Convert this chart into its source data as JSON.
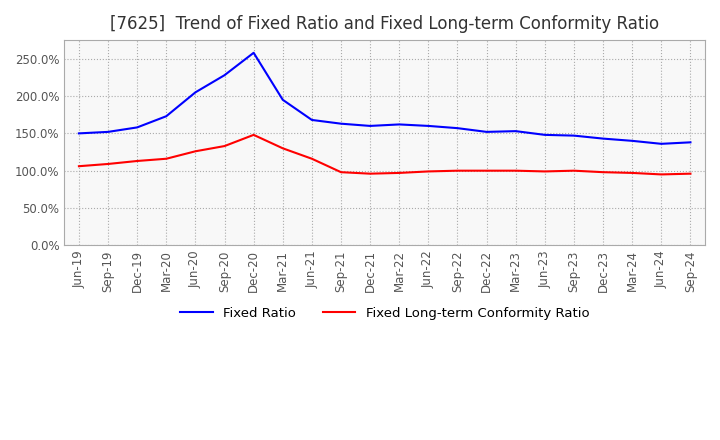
{
  "title": "[7625]  Trend of Fixed Ratio and Fixed Long-term Conformity Ratio",
  "x_labels": [
    "Jun-19",
    "Sep-19",
    "Dec-19",
    "Mar-20",
    "Jun-20",
    "Sep-20",
    "Dec-20",
    "Mar-21",
    "Jun-21",
    "Sep-21",
    "Dec-21",
    "Mar-22",
    "Jun-22",
    "Sep-22",
    "Dec-22",
    "Mar-23",
    "Jun-23",
    "Sep-23",
    "Dec-23",
    "Mar-24",
    "Jun-24",
    "Sep-24"
  ],
  "fixed_ratio": [
    150.0,
    152.0,
    158.0,
    173.0,
    205.0,
    228.0,
    258.0,
    195.0,
    168.0,
    163.0,
    160.0,
    162.0,
    160.0,
    157.0,
    152.0,
    153.0,
    148.0,
    147.0,
    143.0,
    140.0,
    136.0,
    138.0
  ],
  "fixed_lt_ratio": [
    106.0,
    109.0,
    113.0,
    116.0,
    126.0,
    133.0,
    148.0,
    130.0,
    116.0,
    98.0,
    96.0,
    97.0,
    99.0,
    100.0,
    100.0,
    100.0,
    99.0,
    100.0,
    98.0,
    97.0,
    95.0,
    96.0
  ],
  "fixed_ratio_color": "#0000ff",
  "fixed_lt_ratio_color": "#ff0000",
  "ylim": [
    0.0,
    275.0
  ],
  "yticks": [
    0.0,
    50.0,
    100.0,
    150.0,
    200.0,
    250.0
  ],
  "grid_color": "#aaaaaa",
  "background_color": "#ffffff",
  "plot_bg_color": "#f8f8f8",
  "legend_fixed_ratio": "Fixed Ratio",
  "legend_fixed_lt_ratio": "Fixed Long-term Conformity Ratio",
  "title_fontsize": 12,
  "tick_fontsize": 8.5,
  "legend_fontsize": 9.5
}
